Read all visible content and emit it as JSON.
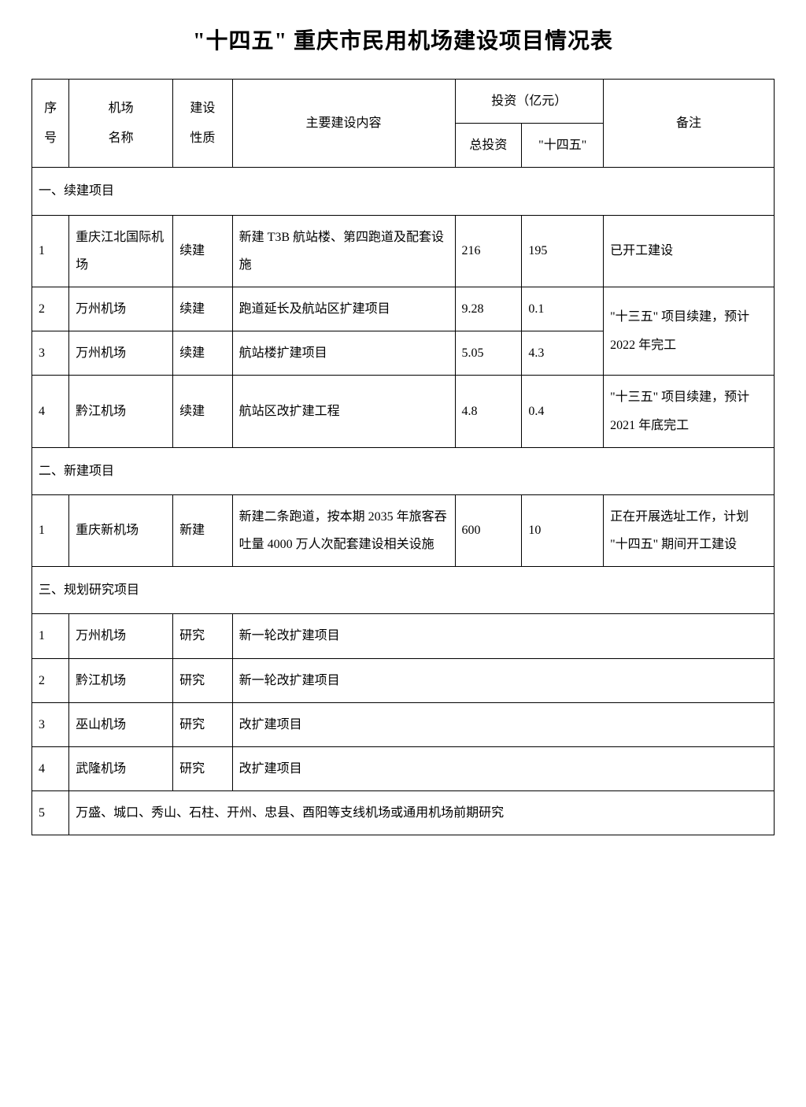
{
  "title": "\"十四五\" 重庆市民用机场建设项目情况表",
  "columns": {
    "seq": "序号",
    "seq_l1": "序",
    "seq_l2": "号",
    "name": "机场名称",
    "name_l1": "机场",
    "name_l2": "名称",
    "type": "建设性质",
    "type_l1": "建设",
    "type_l2": "性质",
    "content": "主要建设内容",
    "investment": "投资（亿元）",
    "total": "总投资",
    "plan": "\"十四五\"",
    "remark": "备注"
  },
  "sections": [
    {
      "heading": "一、续建项目",
      "rows": [
        {
          "seq": "1",
          "name": "重庆江北国际机场",
          "type": "续建",
          "content": "新建 T3B 航站楼、第四跑道及配套设施",
          "total": "216",
          "plan": "195",
          "remark": "已开工建设",
          "remark_rowspan": 1
        },
        {
          "seq": "2",
          "name": "万州机场",
          "type": "续建",
          "content": "跑道延长及航站区扩建项目",
          "total": "9.28",
          "plan": "0.1",
          "remark": "\"十三五\" 项目续建，预计 2022 年完工",
          "remark_rowspan": 2
        },
        {
          "seq": "3",
          "name": "万州机场",
          "type": "续建",
          "content": "航站楼扩建项目",
          "total": "5.05",
          "plan": "4.3",
          "remark": null
        },
        {
          "seq": "4",
          "name": "黔江机场",
          "type": "续建",
          "content": "航站区改扩建工程",
          "total": "4.8",
          "plan": "0.4",
          "remark": "\"十三五\" 项目续建，预计 2021 年底完工",
          "remark_rowspan": 1
        }
      ]
    },
    {
      "heading": "二、新建项目",
      "rows": [
        {
          "seq": "1",
          "name": "重庆新机场",
          "type": "新建",
          "content": "新建二条跑道，按本期 2035 年旅客吞吐量 4000 万人次配套建设相关设施",
          "total": "600",
          "plan": "10",
          "remark": "正在开展选址工作，计划 \"十四五\" 期间开工建设",
          "remark_rowspan": 1
        }
      ]
    },
    {
      "heading": "三、规划研究项目",
      "rows": [
        {
          "seq": "1",
          "name": "万州机场",
          "type": "研究",
          "content": "新一轮改扩建项目",
          "content_colspan": 4
        },
        {
          "seq": "2",
          "name": "黔江机场",
          "type": "研究",
          "content": "新一轮改扩建项目",
          "content_colspan": 4
        },
        {
          "seq": "3",
          "name": "巫山机场",
          "type": "研究",
          "content": "改扩建项目",
          "content_colspan": 4
        },
        {
          "seq": "4",
          "name": "武隆机场",
          "type": "研究",
          "content": "改扩建项目",
          "content_colspan": 4
        },
        {
          "seq": "5",
          "name": null,
          "type": null,
          "content": "万盛、城口、秀山、石柱、开州、忠县、酉阳等支线机场或通用机场前期研究",
          "full_row": true
        }
      ]
    }
  ],
  "styling": {
    "font_family": "SimSun",
    "title_fontsize": 28,
    "body_fontsize": 16,
    "line_height": 2.2,
    "border_color": "#000000",
    "background_color": "#ffffff",
    "text_color": "#000000",
    "col_widths_pct": [
      5,
      14,
      8,
      30,
      9,
      11,
      23
    ]
  }
}
